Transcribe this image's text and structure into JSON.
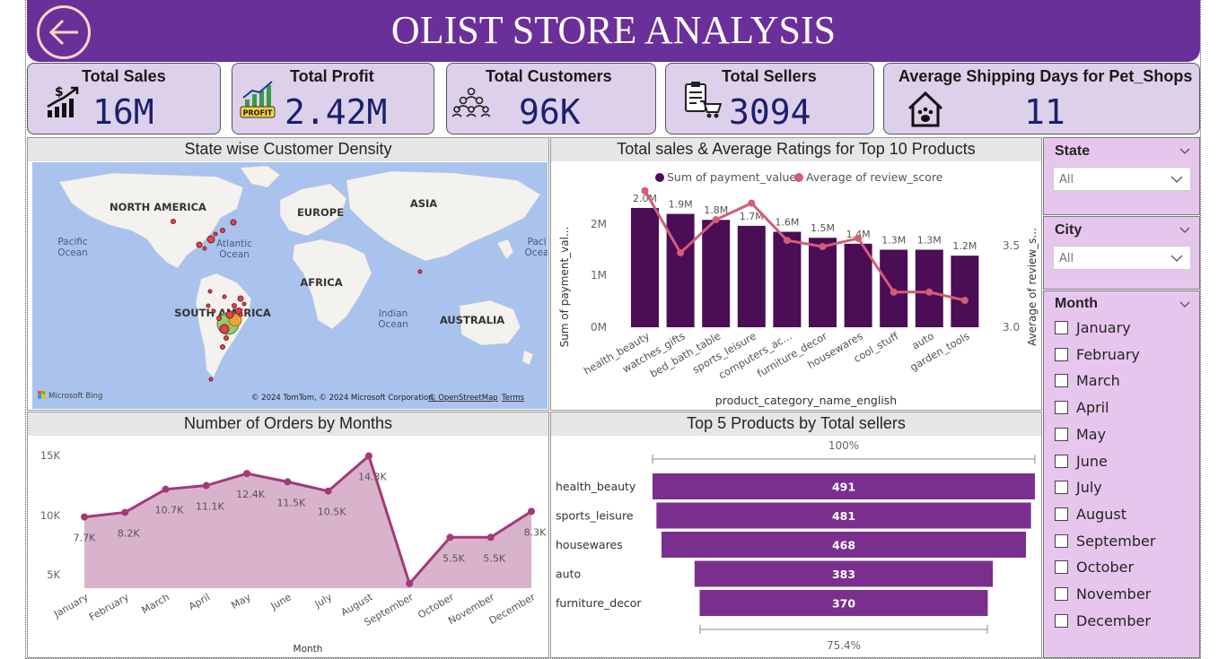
{
  "header": {
    "title": "OLIST STORE ANALYSIS"
  },
  "kpis": {
    "sales": {
      "label": "Total Sales",
      "value": "16M",
      "icon": "sales-chart-icon"
    },
    "profit": {
      "label": "Total Profit",
      "value": "2.42M",
      "icon": "profit-chart-icon",
      "icon_text": "PROFIT"
    },
    "customers": {
      "label": "Total Customers",
      "value": "96K",
      "icon": "customers-group-icon"
    },
    "sellers": {
      "label": "Total Sellers",
      "value": "3094",
      "icon": "seller-cart-icon"
    },
    "shipping": {
      "label": "Average Shipping Days for Pet_Shops",
      "value": "11",
      "icon": "pet-house-icon"
    }
  },
  "map_panel": {
    "title": "State wise Customer Density",
    "labels": {
      "north_america": "NORTH AMERICA",
      "europe": "EUROPE",
      "asia": "ASIA",
      "africa": "AFRICA",
      "south_america": "SOUTH AMERICA",
      "australia": "AUSTRALIA",
      "pacific_1": "Pacific",
      "pacific_2": "Ocean",
      "pacific_right_1": "Paci",
      "pacific_right_2": "Ocea",
      "atlantic_1": "Atlantic",
      "atlantic_2": "Ocean",
      "indian_1": "Indian",
      "indian_2": "Ocean"
    },
    "brand": "Microsoft Bing",
    "attribution": "© 2024 TomTom, © 2024 Microsoft Corporation,",
    "osm_link": "© OpenStreetMap",
    "terms_link": "Terms",
    "colors": {
      "water": "#a9c3ee",
      "land": "#f3f2ef",
      "bubble_red": "#e0434a",
      "bubble_green": "#7ec857",
      "bubble_orange": "#f0a033"
    }
  },
  "combo_panel": {
    "title": "Total sales & Average Ratings for Top 10 Products",
    "legend": {
      "series1": "Sum of payment_value",
      "series2": "Average of review_score"
    },
    "y_left_label": "Sum of payment_val...",
    "y_right_label": "Average of review_s...",
    "x_label": "product_category_name_english",
    "y_left_ticks": [
      "0M",
      "1M",
      "2M"
    ],
    "y_right_ticks": [
      "3.0",
      "3.5"
    ]
  },
  "orders_panel": {
    "title": "Number of Orders by Months",
    "x_label": "Month",
    "y_ticks": [
      "5K",
      "10K",
      "15K"
    ]
  },
  "funnel_panel": {
    "title": "Top 5 Products by Total sellers",
    "top_pct": "100%",
    "bottom_pct": "75.4%"
  },
  "filters": {
    "state": {
      "title": "State",
      "value": "All"
    },
    "city": {
      "title": "City",
      "value": "All"
    },
    "month": {
      "title": "Month",
      "options": [
        "January",
        "February",
        "March",
        "April",
        "May",
        "June",
        "July",
        "August",
        "September",
        "October",
        "November",
        "December"
      ]
    }
  },
  "chart_data": [
    {
      "type": "bar",
      "title": "Total sales & Average Ratings for Top 10 Products",
      "xlabel": "product_category_name_english",
      "ylabel": "Sum of payment_val...",
      "categories": [
        "health_beauty",
        "watches_gifts",
        "bed_bath_table",
        "sports_leisure",
        "computers_ac...",
        "furniture_decor",
        "housewares",
        "cool_stuff",
        "auto",
        "garden_tools"
      ],
      "series": [
        {
          "name": "Sum of payment_value",
          "type": "bar",
          "values": [
            2.0,
            1.9,
            1.8,
            1.7,
            1.6,
            1.5,
            1.4,
            1.3,
            1.3,
            1.2
          ],
          "labels": [
            "2.0M",
            "1.9M",
            "1.8M",
            "1.7M",
            "1.6M",
            "1.5M",
            "1.4M",
            "1.3M",
            "1.3M",
            "1.2M"
          ],
          "color": "#4b0d55"
        },
        {
          "name": "Average of review_score",
          "type": "line",
          "axis": "right",
          "values": [
            3.61,
            3.31,
            3.47,
            3.55,
            3.37,
            3.34,
            3.38,
            3.12,
            3.12,
            3.08
          ],
          "color": "#d45c74"
        }
      ],
      "ylim": [
        0,
        2.6
      ],
      "y2lim": [
        2.95,
        3.7
      ]
    },
    {
      "type": "area",
      "title": "Number of Orders by Months",
      "xlabel": "Month",
      "categories": [
        "January",
        "February",
        "March",
        "April",
        "May",
        "June",
        "July",
        "August",
        "September",
        "October",
        "November",
        "December"
      ],
      "values": [
        7.7,
        8.2,
        10.7,
        11.1,
        12.4,
        11.5,
        10.5,
        14.3,
        0.5,
        5.5,
        5.5,
        8.3
      ],
      "labels": [
        "7.7K",
        "8.2K",
        "10.7K",
        "11.1K",
        "12.4K",
        "11.5K",
        "10.5K",
        "14.3K",
        "",
        "5.5K",
        "5.5K",
        "8.3K"
      ],
      "ylim": [
        0,
        16
      ],
      "color": "#a3397a",
      "fill": "#d9b3cc"
    },
    {
      "type": "bar",
      "subtype": "funnel",
      "title": "Top 5 Products by Total sellers",
      "categories": [
        "health_beauty",
        "sports_leisure",
        "housewares",
        "auto",
        "furniture_decor"
      ],
      "values": [
        491,
        481,
        468,
        383,
        370
      ],
      "color": "#7a2f8e"
    }
  ]
}
